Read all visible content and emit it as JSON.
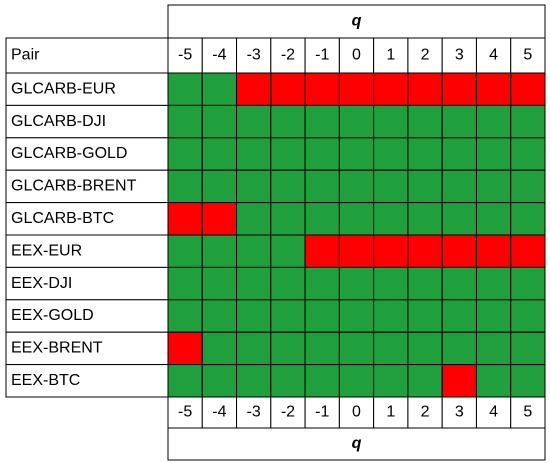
{
  "table": {
    "axis_label": "q",
    "pair_header": "Pair",
    "columns": [
      -5,
      -4,
      -3,
      -2,
      -1,
      0,
      1,
      2,
      3,
      4,
      5
    ],
    "rows": [
      {
        "pair": "GLCARB-EUR",
        "cells": [
          "#1fa03c",
          "#1fa03c",
          "#ff0000",
          "#ff0000",
          "#ff0000",
          "#ff0000",
          "#ff0000",
          "#ff0000",
          "#ff0000",
          "#ff0000",
          "#ff0000"
        ]
      },
      {
        "pair": "GLCARB-DJI",
        "cells": [
          "#1fa03c",
          "#1fa03c",
          "#1fa03c",
          "#1fa03c",
          "#1fa03c",
          "#1fa03c",
          "#1fa03c",
          "#1fa03c",
          "#1fa03c",
          "#1fa03c",
          "#1fa03c"
        ]
      },
      {
        "pair": "GLCARB-GOLD",
        "cells": [
          "#1fa03c",
          "#1fa03c",
          "#1fa03c",
          "#1fa03c",
          "#1fa03c",
          "#1fa03c",
          "#1fa03c",
          "#1fa03c",
          "#1fa03c",
          "#1fa03c",
          "#1fa03c"
        ]
      },
      {
        "pair": "GLCARB-BRENT",
        "cells": [
          "#1fa03c",
          "#1fa03c",
          "#1fa03c",
          "#1fa03c",
          "#1fa03c",
          "#1fa03c",
          "#1fa03c",
          "#1fa03c",
          "#1fa03c",
          "#1fa03c",
          "#1fa03c"
        ]
      },
      {
        "pair": "GLCARB-BTC",
        "cells": [
          "#ff0000",
          "#ff0000",
          "#1fa03c",
          "#1fa03c",
          "#1fa03c",
          "#1fa03c",
          "#1fa03c",
          "#1fa03c",
          "#1fa03c",
          "#1fa03c",
          "#1fa03c"
        ]
      },
      {
        "pair": "EEX-EUR",
        "cells": [
          "#1fa03c",
          "#1fa03c",
          "#1fa03c",
          "#1fa03c",
          "#ff0000",
          "#ff0000",
          "#ff0000",
          "#ff0000",
          "#ff0000",
          "#ff0000",
          "#ff0000"
        ]
      },
      {
        "pair": "EEX-DJI",
        "cells": [
          "#1fa03c",
          "#1fa03c",
          "#1fa03c",
          "#1fa03c",
          "#1fa03c",
          "#1fa03c",
          "#1fa03c",
          "#1fa03c",
          "#1fa03c",
          "#1fa03c",
          "#1fa03c"
        ]
      },
      {
        "pair": "EEX-GOLD",
        "cells": [
          "#1fa03c",
          "#1fa03c",
          "#1fa03c",
          "#1fa03c",
          "#1fa03c",
          "#1fa03c",
          "#1fa03c",
          "#1fa03c",
          "#1fa03c",
          "#1fa03c",
          "#1fa03c"
        ]
      },
      {
        "pair": "EEX-BRENT",
        "cells": [
          "#ff0000",
          "#1fa03c",
          "#1fa03c",
          "#1fa03c",
          "#1fa03c",
          "#1fa03c",
          "#1fa03c",
          "#1fa03c",
          "#1fa03c",
          "#1fa03c",
          "#1fa03c"
        ]
      },
      {
        "pair": "EEX-BTC",
        "cells": [
          "#1fa03c",
          "#1fa03c",
          "#1fa03c",
          "#1fa03c",
          "#1fa03c",
          "#1fa03c",
          "#1fa03c",
          "#1fa03c",
          "#ff0000",
          "#1fa03c",
          "#1fa03c"
        ]
      }
    ]
  }
}
